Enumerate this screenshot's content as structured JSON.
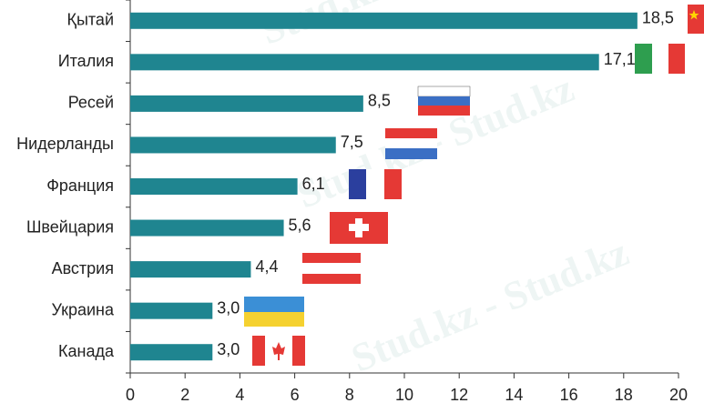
{
  "chart_data": {
    "type": "bar",
    "orientation": "horizontal",
    "categories": [
      "Қытай",
      "Италия",
      "Ресей",
      "Нидерланды",
      "Франция",
      "Швейцария",
      "Австрия",
      "Украина",
      "Канада"
    ],
    "values": [
      18.5,
      17.1,
      8.5,
      7.5,
      6.1,
      5.6,
      4.4,
      3.0,
      3.0
    ],
    "value_labels": [
      "18,5",
      "17,1",
      "8,5",
      "7,5",
      "6,1",
      "5,6",
      "4,4",
      "3,0",
      "3,0"
    ],
    "color": "#1f8590",
    "xlim": [
      0,
      20
    ],
    "xticks": [
      0,
      2,
      4,
      6,
      8,
      10,
      12,
      14,
      16,
      18,
      20
    ],
    "watermark": "Stud.kz - Stud.kz"
  }
}
